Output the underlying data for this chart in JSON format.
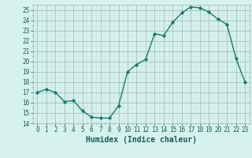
{
  "x": [
    0,
    1,
    2,
    3,
    4,
    5,
    6,
    7,
    8,
    9,
    10,
    11,
    12,
    13,
    14,
    15,
    16,
    17,
    18,
    19,
    20,
    21,
    22,
    23
  ],
  "y": [
    17.0,
    17.3,
    17.0,
    16.1,
    16.2,
    15.2,
    14.6,
    14.5,
    14.5,
    15.7,
    19.0,
    19.7,
    20.2,
    22.7,
    22.5,
    23.8,
    24.7,
    25.3,
    25.2,
    24.8,
    24.1,
    23.6,
    20.3,
    18.0
  ],
  "xlabel": "Humidex (Indice chaleur)",
  "ylim": [
    14,
    25.5
  ],
  "xlim": [
    -0.5,
    23.5
  ],
  "yticks": [
    14,
    15,
    16,
    17,
    18,
    19,
    20,
    21,
    22,
    23,
    24,
    25
  ],
  "xticks": [
    0,
    1,
    2,
    3,
    4,
    5,
    6,
    7,
    8,
    9,
    10,
    11,
    12,
    13,
    14,
    15,
    16,
    17,
    18,
    19,
    20,
    21,
    22,
    23
  ],
  "line_color": "#1a7a6e",
  "marker_color": "#1a7a6e",
  "bg_color": "#d6f2ee",
  "grid_major_color": "#b0c8c4",
  "grid_minor_color": "#c8e4e0",
  "xlabel_color": "#1a5a54",
  "tick_color": "#1a5a54"
}
